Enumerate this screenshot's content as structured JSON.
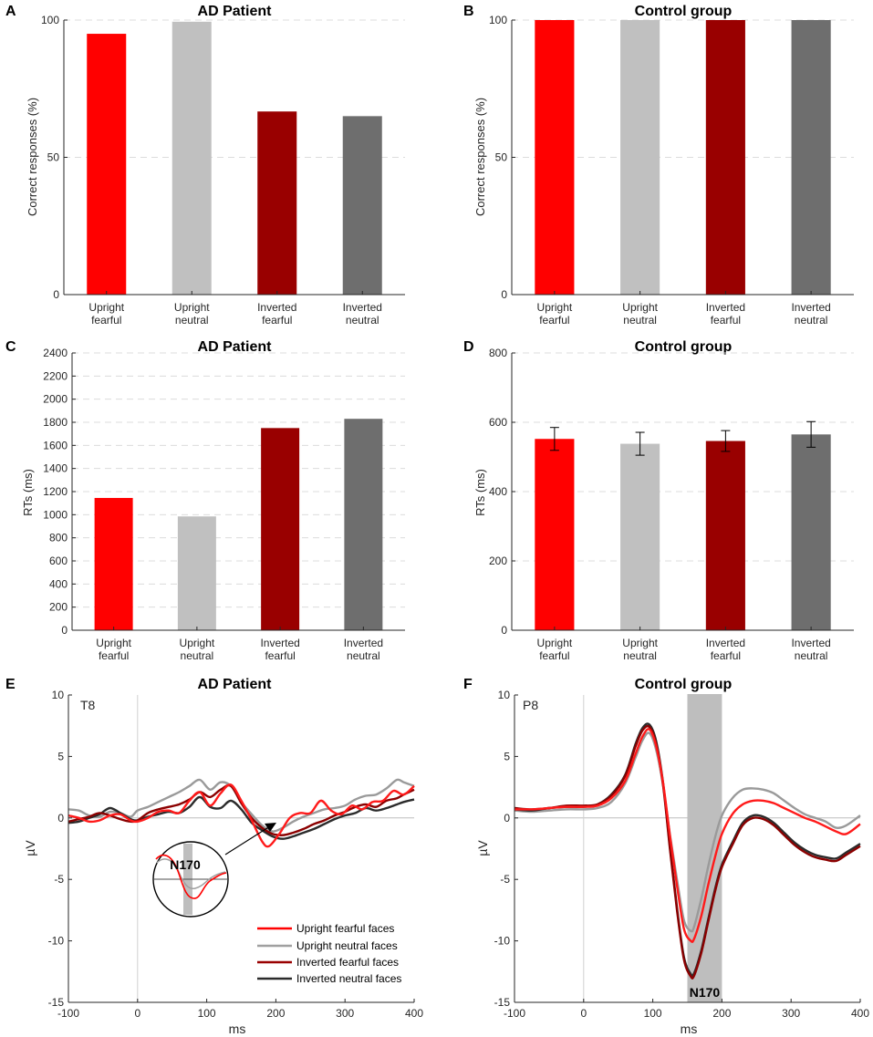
{
  "palette": {
    "upright_fearful": "#ff0000",
    "upright_neutral": "#c0c0c0",
    "inverted_fearful": "#990000",
    "inverted_neutral": "#6e6e6e",
    "axis": "#262626",
    "grid": "#dcdcdc",
    "window": "#bebebe"
  },
  "chart_data": [
    {
      "id": "A",
      "panel_letter": "A",
      "type": "bar",
      "title": "AD Patient",
      "ylabel": "Correct responses (%)",
      "categories": [
        [
          "Upright",
          "fearful"
        ],
        [
          "Upright",
          "neutral"
        ],
        [
          "Inverted",
          "fearful"
        ],
        [
          "Inverted",
          "neutral"
        ]
      ],
      "values": [
        95,
        99.4,
        66.7,
        65
      ],
      "ylim": [
        0,
        100
      ],
      "yticks": [
        0,
        50,
        100
      ],
      "ytick_labels": [
        "0",
        "50",
        "100"
      ],
      "grid": true
    },
    {
      "id": "B",
      "panel_letter": "B",
      "type": "bar",
      "title": "Control group",
      "ylabel": "Correct responses (%)",
      "categories": [
        [
          "Upright",
          "fearful"
        ],
        [
          "Upright",
          "neutral"
        ],
        [
          "Inverted",
          "fearful"
        ],
        [
          "Inverted",
          "neutral"
        ]
      ],
      "values": [
        100,
        100,
        100,
        100
      ],
      "ylim": [
        0,
        100
      ],
      "yticks": [
        0,
        50,
        100
      ],
      "ytick_labels": [
        "0",
        "50",
        "100"
      ],
      "grid": true
    },
    {
      "id": "C",
      "panel_letter": "C",
      "type": "bar",
      "title": "AD Patient",
      "ylabel": "RTs (ms)",
      "categories": [
        [
          "Upright",
          "fearful"
        ],
        [
          "Upright",
          "neutral"
        ],
        [
          "Inverted",
          "fearful"
        ],
        [
          "Inverted",
          "neutral"
        ]
      ],
      "values": [
        1145,
        985,
        1750,
        1830
      ],
      "ylim": [
        0,
        2400
      ],
      "yticks": [
        0,
        200,
        400,
        600,
        800,
        1000,
        1200,
        1400,
        1600,
        1800,
        2000,
        2200,
        2400
      ],
      "ytick_labels": [
        "0",
        "200",
        "400",
        "600",
        "800",
        "1000",
        "1200",
        "1400",
        "1600",
        "1800",
        "2000",
        "2200",
        "2400"
      ],
      "grid": true
    },
    {
      "id": "D",
      "panel_letter": "D",
      "type": "bar",
      "title": "Control group",
      "ylabel": "RTs (ms)",
      "categories": [
        [
          "Upright",
          "fearful"
        ],
        [
          "Upright",
          "neutral"
        ],
        [
          "Inverted",
          "fearful"
        ],
        [
          "Inverted",
          "neutral"
        ]
      ],
      "values": [
        552,
        538,
        546,
        565
      ],
      "errors": [
        33,
        33,
        30,
        37
      ],
      "ylim": [
        0,
        800
      ],
      "yticks": [
        0,
        200,
        400,
        600,
        800
      ],
      "ytick_labels": [
        "0",
        "200",
        "400",
        "600",
        "800"
      ],
      "grid": true
    },
    {
      "id": "E",
      "panel_letter": "E",
      "type": "line",
      "title": "AD Patient",
      "xlabel": "ms",
      "ylabel": "µV",
      "channel": "T8",
      "xlim": [
        -100,
        400
      ],
      "ylim": [
        -15,
        10
      ],
      "xticks": [
        -100,
        0,
        100,
        200,
        300,
        400
      ],
      "xtick_labels": [
        "-100",
        "0",
        "100",
        "200",
        "300",
        "400"
      ],
      "yticks": [
        -15,
        -10,
        -5,
        0,
        5,
        10
      ],
      "ytick_labels": [
        "-15",
        "-10",
        "-5",
        "0",
        "5",
        "10"
      ],
      "legend_position": "bottom-right",
      "legend": [
        "Upright fearful faces",
        "Upright neutral faces",
        "Inverted fearful faces",
        "Inverted neutral faces"
      ],
      "inset_label": "N170",
      "series": [
        {
          "name": "Upright fearful faces",
          "color_key": "upright_fearful",
          "x": [
            -100,
            -85,
            -70,
            -55,
            -40,
            -25,
            -10,
            0,
            15,
            30,
            45,
            60,
            75,
            90,
            105,
            120,
            135,
            150,
            165,
            180,
            190,
            205,
            220,
            235,
            250,
            265,
            280,
            295,
            310,
            325,
            340,
            355,
            370,
            385,
            400
          ],
          "y": [
            0.2,
            0,
            -0.3,
            -0.2,
            0.2,
            0.3,
            -0.2,
            -0.3,
            0,
            0.5,
            0.6,
            0.4,
            1.4,
            2.1,
            1,
            2,
            2.7,
            1.4,
            -0.2,
            -1.9,
            -2.3,
            -1.3,
            0,
            0.4,
            0.4,
            1.4,
            0.6,
            0.3,
            1,
            0.7,
            1.3,
            1.4,
            2.2,
            1.9,
            2.6
          ]
        },
        {
          "name": "Upright neutral faces",
          "color_key": "upright_neutral",
          "x": [
            -100,
            -85,
            -70,
            -55,
            -40,
            -25,
            -10,
            0,
            15,
            30,
            45,
            60,
            75,
            90,
            105,
            120,
            135,
            150,
            165,
            180,
            195,
            210,
            225,
            240,
            255,
            270,
            285,
            300,
            315,
            330,
            345,
            360,
            375,
            385,
            400
          ],
          "y": [
            0.7,
            0.6,
            0.2,
            0.1,
            0.5,
            0.4,
            0.1,
            0.6,
            0.9,
            1.3,
            1.7,
            2.1,
            2.6,
            3.1,
            2.3,
            2.9,
            2.6,
            1.3,
            0.3,
            -0.6,
            -1.1,
            -0.8,
            -0.3,
            0.1,
            0.4,
            0.7,
            0.8,
            1,
            1.5,
            1.8,
            1.9,
            2.4,
            3.1,
            2.9,
            2.6
          ]
        },
        {
          "name": "Inverted fearful faces",
          "color_key": "inverted_fearful",
          "x": [
            -100,
            -85,
            -70,
            -55,
            -40,
            -25,
            -10,
            0,
            15,
            30,
            45,
            60,
            75,
            90,
            105,
            120,
            135,
            150,
            165,
            180,
            195,
            210,
            225,
            240,
            255,
            270,
            285,
            300,
            315,
            330,
            345,
            360,
            375,
            385,
            400
          ],
          "y": [
            -0.3,
            -0.1,
            0.1,
            0.4,
            0.2,
            -0.1,
            -0.3,
            -0.2,
            0.4,
            0.7,
            0.9,
            1.1,
            1.5,
            2.1,
            1.7,
            2.3,
            2.6,
            1.2,
            0,
            -0.8,
            -1.3,
            -1.4,
            -1.2,
            -0.9,
            -0.5,
            -0.2,
            0.2,
            0.5,
            0.9,
            1.1,
            0.9,
            1.4,
            1.6,
            1.9,
            2.3
          ]
        },
        {
          "name": "Inverted neutral faces",
          "color_key": "inverted_neutral",
          "x": [
            -100,
            -85,
            -70,
            -55,
            -40,
            -25,
            -10,
            0,
            15,
            30,
            45,
            60,
            75,
            90,
            105,
            120,
            135,
            150,
            165,
            180,
            195,
            210,
            225,
            240,
            255,
            270,
            285,
            300,
            315,
            330,
            345,
            360,
            375,
            385,
            400
          ],
          "y": [
            -0.4,
            -0.3,
            0,
            0.3,
            0.8,
            0.4,
            -0.1,
            -0.2,
            0.1,
            0.3,
            0.5,
            0.4,
            0.9,
            1.7,
            0.9,
            0.8,
            1.4,
            0.7,
            -0.4,
            -1,
            -1.5,
            -1.7,
            -1.5,
            -1.2,
            -0.9,
            -0.5,
            -0.1,
            0.2,
            0.4,
            0.8,
            0.6,
            0.8,
            1.1,
            1.3,
            1.5
          ]
        }
      ]
    },
    {
      "id": "F",
      "panel_letter": "F",
      "type": "line",
      "title": "Control group",
      "xlabel": "ms",
      "ylabel": "µV",
      "channel": "P8",
      "xlim": [
        -100,
        400
      ],
      "ylim": [
        -15,
        10
      ],
      "xticks": [
        -100,
        0,
        100,
        200,
        300,
        400
      ],
      "xtick_labels": [
        "-100",
        "0",
        "100",
        "200",
        "300",
        "400"
      ],
      "yticks": [
        -15,
        -10,
        -5,
        0,
        5,
        10
      ],
      "ytick_labels": [
        "-15",
        "-10",
        "-5",
        "0",
        "5",
        "10"
      ],
      "window_label": "N170",
      "window_range": [
        150,
        200
      ],
      "series": [
        {
          "name": "Upright fearful faces",
          "color_key": "upright_fearful",
          "x": [
            -100,
            -75,
            -50,
            -25,
            0,
            20,
            40,
            60,
            75,
            85,
            95,
            105,
            115,
            125,
            135,
            145,
            155,
            160,
            170,
            180,
            190,
            200,
            215,
            230,
            245,
            260,
            275,
            290,
            305,
            320,
            335,
            350,
            365,
            380,
            400
          ],
          "y": [
            0.7,
            0.7,
            0.8,
            0.9,
            0.9,
            1,
            1.6,
            3,
            5.2,
            6.6,
            7.2,
            5.8,
            2.8,
            -1.5,
            -5.5,
            -9,
            -10,
            -9.8,
            -8,
            -5.5,
            -3.2,
            -1.3,
            0.3,
            1.1,
            1.4,
            1.4,
            1.2,
            0.8,
            0.4,
            0,
            -0.3,
            -0.7,
            -1.1,
            -1.3,
            -0.5
          ]
        },
        {
          "name": "Upright neutral faces",
          "color_key": "upright_neutral",
          "x": [
            -100,
            -75,
            -50,
            -25,
            0,
            20,
            40,
            60,
            75,
            85,
            95,
            105,
            115,
            125,
            135,
            145,
            155,
            160,
            170,
            180,
            190,
            200,
            215,
            230,
            245,
            260,
            275,
            290,
            305,
            320,
            335,
            350,
            365,
            380,
            400
          ],
          "y": [
            0.6,
            0.5,
            0.6,
            0.7,
            0.7,
            0.8,
            1.3,
            2.8,
            4.9,
            6.3,
            6.9,
            5.5,
            2.6,
            -1.4,
            -5,
            -8.3,
            -9.2,
            -8.8,
            -6.6,
            -4,
            -1.6,
            0.2,
            1.6,
            2.3,
            2.4,
            2.3,
            2,
            1.4,
            0.8,
            0.3,
            0,
            -0.3,
            -0.8,
            -0.6,
            0.2
          ]
        },
        {
          "name": "Inverted fearful faces",
          "color_key": "inverted_fearful",
          "x": [
            -100,
            -75,
            -50,
            -25,
            0,
            20,
            40,
            60,
            75,
            85,
            95,
            105,
            115,
            125,
            135,
            145,
            155,
            160,
            170,
            180,
            190,
            200,
            215,
            230,
            245,
            260,
            275,
            290,
            305,
            320,
            335,
            350,
            365,
            380,
            400
          ],
          "y": [
            0.8,
            0.7,
            0.8,
            1,
            1,
            1.1,
            1.8,
            3.4,
            5.8,
            7.1,
            7.4,
            6,
            2.6,
            -2.6,
            -7.5,
            -11.5,
            -12.9,
            -12.8,
            -11,
            -8.5,
            -6,
            -4,
            -2.2,
            -0.6,
            0,
            -0.1,
            -0.6,
            -1.4,
            -2.2,
            -2.8,
            -3.2,
            -3.4,
            -3.5,
            -3,
            -2.3
          ]
        },
        {
          "name": "Inverted neutral faces",
          "color_key": "inverted_neutral",
          "x": [
            -100,
            -75,
            -50,
            -25,
            0,
            20,
            40,
            60,
            75,
            85,
            95,
            105,
            115,
            125,
            135,
            145,
            155,
            160,
            170,
            180,
            190,
            200,
            215,
            230,
            245,
            260,
            275,
            290,
            305,
            320,
            335,
            350,
            365,
            380,
            400
          ],
          "y": [
            0.7,
            0.6,
            0.8,
            0.9,
            0.9,
            1.1,
            1.9,
            3.5,
            6,
            7.3,
            7.6,
            6.2,
            2.8,
            -2.4,
            -7.3,
            -11.3,
            -12.7,
            -12.6,
            -10.8,
            -8.3,
            -5.8,
            -3.8,
            -2,
            -0.4,
            0.2,
            0.1,
            -0.4,
            -1.2,
            -2,
            -2.6,
            -3,
            -3.2,
            -3.3,
            -2.8,
            -2.1
          ]
        }
      ]
    }
  ]
}
